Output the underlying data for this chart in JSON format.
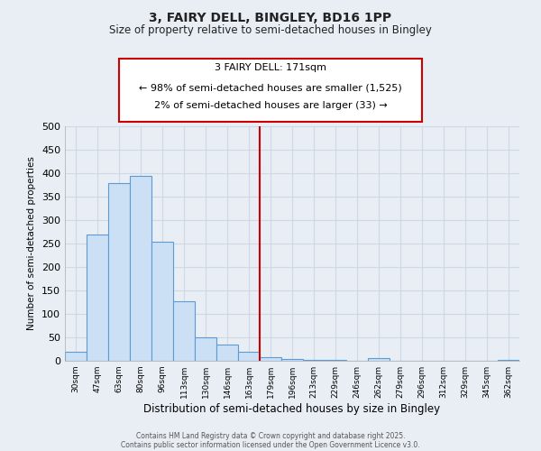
{
  "title": "3, FAIRY DELL, BINGLEY, BD16 1PP",
  "subtitle": "Size of property relative to semi-detached houses in Bingley",
  "xlabel": "Distribution of semi-detached houses by size in Bingley",
  "ylabel": "Number of semi-detached properties",
  "bar_labels": [
    "30sqm",
    "47sqm",
    "63sqm",
    "80sqm",
    "96sqm",
    "113sqm",
    "130sqm",
    "146sqm",
    "163sqm",
    "179sqm",
    "196sqm",
    "213sqm",
    "229sqm",
    "246sqm",
    "262sqm",
    "279sqm",
    "296sqm",
    "312sqm",
    "329sqm",
    "345sqm",
    "362sqm"
  ],
  "bar_values": [
    20,
    270,
    378,
    395,
    253,
    126,
    50,
    34,
    20,
    8,
    3,
    2,
    1,
    0,
    5,
    0,
    0,
    0,
    0,
    0,
    1
  ],
  "bar_color": "#cce0f5",
  "bar_edge_color": "#5b9bd5",
  "ylim": [
    0,
    500
  ],
  "yticks": [
    0,
    50,
    100,
    150,
    200,
    250,
    300,
    350,
    400,
    450,
    500
  ],
  "vline_x": 8.5,
  "vline_color": "#cc0000",
  "annotation_title": "3 FAIRY DELL: 171sqm",
  "annotation_line1": "← 98% of semi-detached houses are smaller (1,525)",
  "annotation_line2": "2% of semi-detached houses are larger (33) →",
  "annotation_box_color": "#ffffff",
  "annotation_box_edge": "#cc0000",
  "footer_line1": "Contains HM Land Registry data © Crown copyright and database right 2025.",
  "footer_line2": "Contains public sector information licensed under the Open Government Licence v3.0.",
  "bg_color": "#e8eef4",
  "grid_color": "#d0d8e4"
}
